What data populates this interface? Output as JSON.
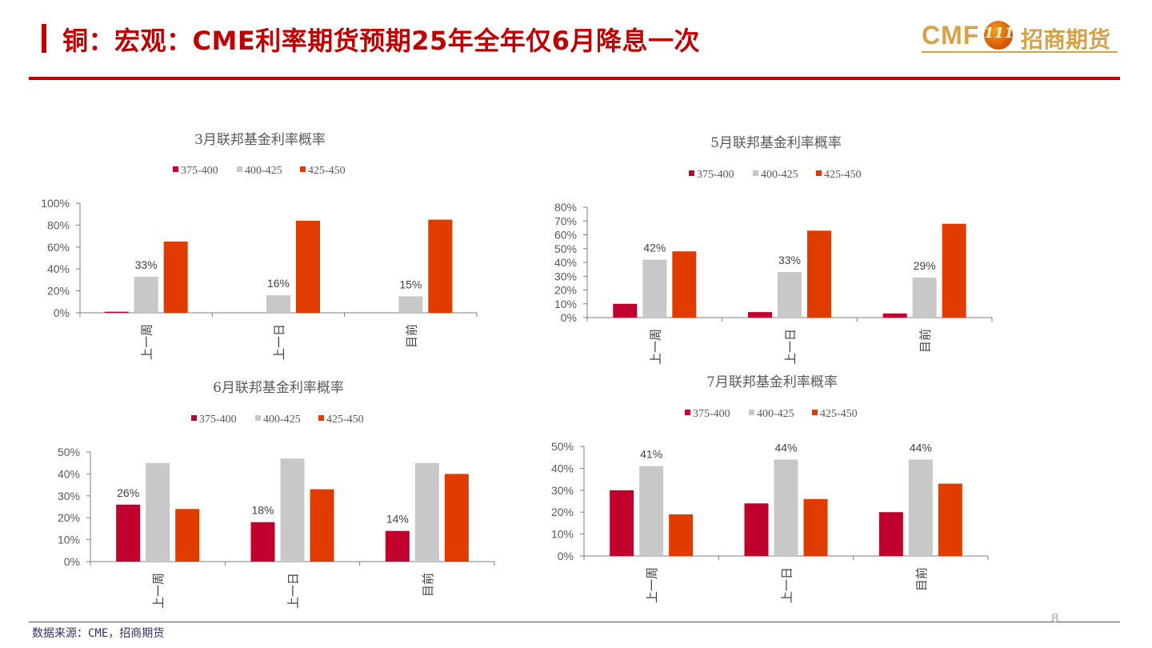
{
  "header": {
    "title": "铜：宏观：CME利率期货预期25年全年仅6月降息一次",
    "logo_text": "CMF",
    "logo_badge": "111",
    "logo_cn": "招商期货"
  },
  "footer": {
    "source": "数据来源：CME，招商期货",
    "page_number": "8"
  },
  "colors": {
    "brand_red": "#c00000",
    "series_375_400": "#c0002d",
    "series_400_425": "#c8c8c8",
    "series_425_450": "#e03c00",
    "logo_gold": "#d5a24a"
  },
  "chart_data": [
    {
      "type": "bar",
      "title": "3月联邦基金利率概率",
      "categories": [
        "上一周",
        "上一日",
        "目前"
      ],
      "ylim": [
        0,
        100
      ],
      "yticks": [
        0,
        20,
        40,
        60,
        80,
        100
      ],
      "ytick_labels": [
        "0%",
        "20%",
        "40%",
        "60%",
        "80%",
        "100%"
      ],
      "legend_position": "top",
      "series": [
        {
          "name": "375-400",
          "values": [
            1,
            0,
            0
          ]
        },
        {
          "name": "400-425",
          "values": [
            33,
            16,
            15
          ]
        },
        {
          "name": "425-450",
          "values": [
            65,
            84,
            85
          ]
        }
      ],
      "data_labels": [
        {
          "series": 1,
          "category": 0,
          "text": "33%"
        },
        {
          "series": 1,
          "category": 1,
          "text": "16%"
        },
        {
          "series": 1,
          "category": 2,
          "text": "15%"
        }
      ]
    },
    {
      "type": "bar",
      "title": "5月联邦基金利率概率",
      "categories": [
        "上一周",
        "上一日",
        "目前"
      ],
      "ylim": [
        0,
        80
      ],
      "yticks": [
        0,
        10,
        20,
        30,
        40,
        50,
        60,
        70,
        80
      ],
      "ytick_labels": [
        "0%",
        "10%",
        "20%",
        "30%",
        "40%",
        "50%",
        "60%",
        "70%",
        "80%"
      ],
      "legend_position": "top",
      "series": [
        {
          "name": "375-400",
          "values": [
            10,
            4,
            3
          ]
        },
        {
          "name": "400-425",
          "values": [
            42,
            33,
            29
          ]
        },
        {
          "name": "425-450",
          "values": [
            48,
            63,
            68
          ]
        }
      ],
      "data_labels": [
        {
          "series": 1,
          "category": 0,
          "text": "42%"
        },
        {
          "series": 1,
          "category": 1,
          "text": "33%"
        },
        {
          "series": 1,
          "category": 2,
          "text": "29%"
        }
      ]
    },
    {
      "type": "bar",
      "title": "6月联邦基金利率概率",
      "categories": [
        "上一周",
        "上一日",
        "目前"
      ],
      "ylim": [
        0,
        50
      ],
      "yticks": [
        0,
        10,
        20,
        30,
        40,
        50
      ],
      "ytick_labels": [
        "0%",
        "10%",
        "20%",
        "30%",
        "40%",
        "50%"
      ],
      "legend_position": "top",
      "series": [
        {
          "name": "375-400",
          "values": [
            26,
            18,
            14
          ]
        },
        {
          "name": "400-425",
          "values": [
            45,
            47,
            45
          ]
        },
        {
          "name": "425-450",
          "values": [
            24,
            33,
            40
          ]
        }
      ],
      "data_labels": [
        {
          "series": 0,
          "category": 0,
          "text": "26%"
        },
        {
          "series": 0,
          "category": 1,
          "text": "18%"
        },
        {
          "series": 0,
          "category": 2,
          "text": "14%"
        }
      ]
    },
    {
      "type": "bar",
      "title": "7月联邦基金利率概率",
      "categories": [
        "上一周",
        "上一日",
        "目前"
      ],
      "ylim": [
        0,
        50
      ],
      "yticks": [
        0,
        10,
        20,
        30,
        40,
        50
      ],
      "ytick_labels": [
        "0%",
        "10%",
        "20%",
        "30%",
        "40%",
        "50%"
      ],
      "legend_position": "top",
      "series": [
        {
          "name": "375-400",
          "values": [
            30,
            24,
            20
          ]
        },
        {
          "name": "400-425",
          "values": [
            41,
            44,
            44
          ]
        },
        {
          "name": "425-450",
          "values": [
            19,
            26,
            33
          ]
        }
      ],
      "data_labels": [
        {
          "series": 1,
          "category": 0,
          "text": "41%"
        },
        {
          "series": 1,
          "category": 1,
          "text": "44%"
        },
        {
          "series": 1,
          "category": 2,
          "text": "44%"
        }
      ]
    }
  ]
}
